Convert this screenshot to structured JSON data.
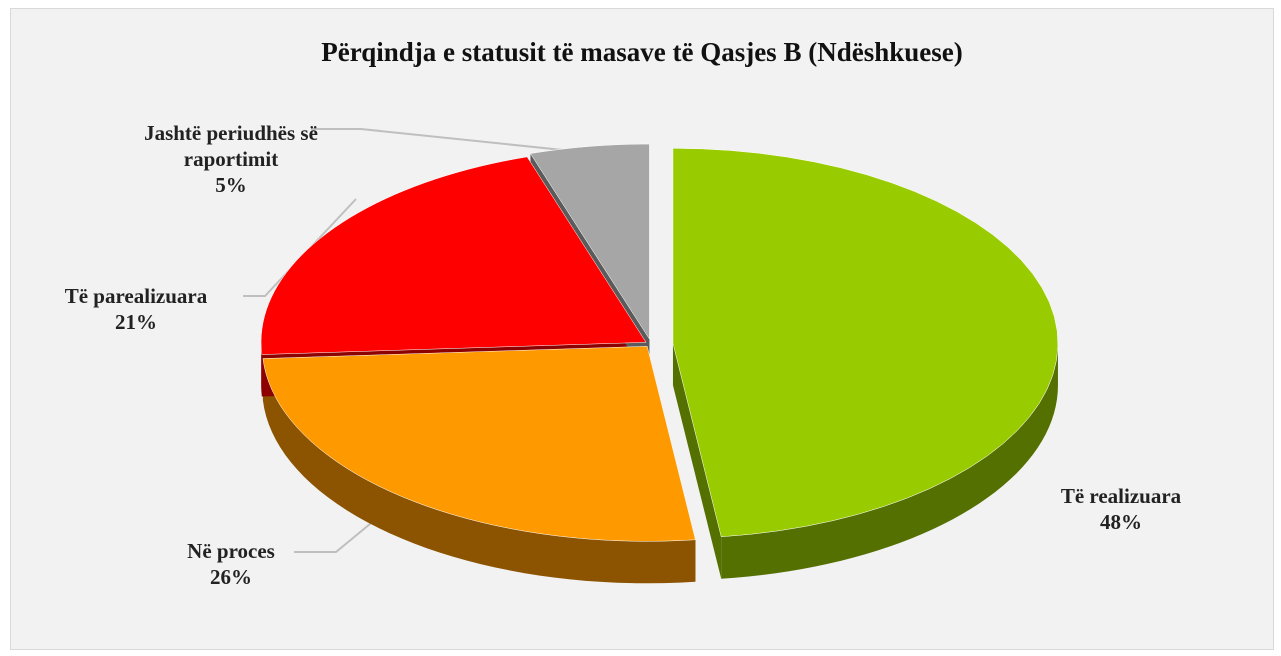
{
  "chart_data": {
    "type": "pie",
    "title": "Përqindja e statusit të masave të Qasjes B (Ndëshkuese)",
    "categories": [
      "Të realizuara",
      "Në proces",
      "Të parealizuara",
      "Jashtë periudhës së raportimit"
    ],
    "values": [
      48,
      26,
      21,
      5
    ],
    "value_labels": [
      "48%",
      "26%",
      "21%",
      "5%"
    ],
    "colors": [
      "#99cc00",
      "#ff9900",
      "#ff0000",
      "#a6a6a6"
    ]
  }
}
